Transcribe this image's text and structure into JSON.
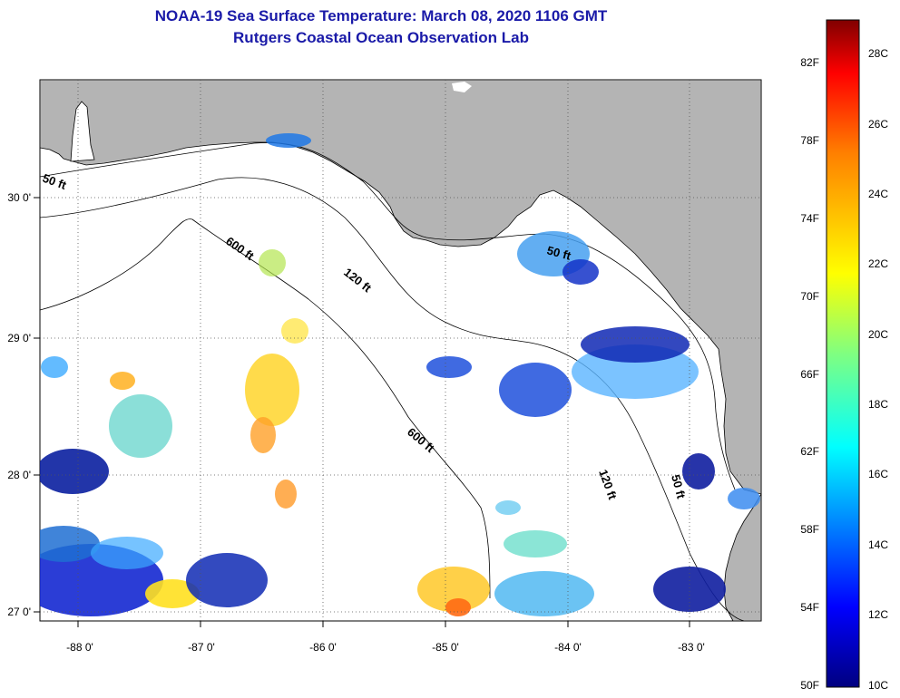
{
  "title_line1": "NOAA-19 Sea Surface Temperature:  March 08, 2020 1106 GMT",
  "title_line2": "Rutgers Coastal Ocean Observation Lab",
  "map": {
    "land_color": "#b4b4b4",
    "ocean_color": "#ffffff",
    "lon_ticks": [
      "-88 0'",
      "-87 0'",
      "-86 0'",
      "-85 0'",
      "-84 0'",
      "-83 0'"
    ],
    "lat_ticks": [
      "30 0'",
      "29 0'",
      "28 0'",
      "27 0'"
    ],
    "contour_labels": [
      "50 ft",
      "600 ft",
      "120 ft",
      "50 ft",
      "600 ft",
      "120 ft",
      "50 ft"
    ]
  },
  "colorbar": {
    "fahrenheit_labels": [
      "82F",
      "78F",
      "74F",
      "70F",
      "66F",
      "62F",
      "58F",
      "54F",
      "50F"
    ],
    "celsius_labels": [
      "28C",
      "26C",
      "24C",
      "22C",
      "20C",
      "18C",
      "16C",
      "14C",
      "12C",
      "10C"
    ],
    "colors": [
      "#800000",
      "#ff0000",
      "#ff8000",
      "#ffff00",
      "#80ff80",
      "#00ffff",
      "#0080ff",
      "#0000ff",
      "#000080"
    ]
  }
}
